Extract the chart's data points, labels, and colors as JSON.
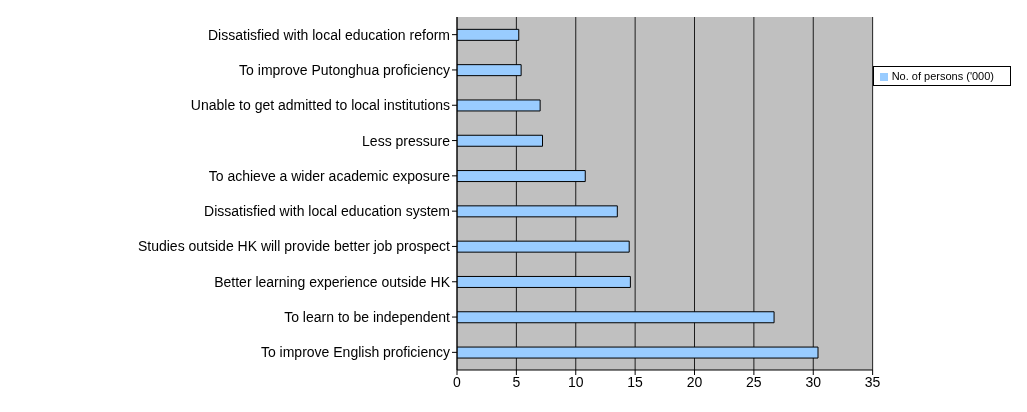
{
  "chart_data": {
    "type": "bar",
    "orientation": "horizontal",
    "categories": [
      "Dissatisfied with local education reform",
      "To improve Putonghua proficiency",
      "Unable to get admitted to local institutions",
      "Less pressure",
      "To achieve a wider academic exposure",
      "Dissatisfied with local education system",
      "Studies outside HK will provide better job prospect",
      "Better learning experience outside HK",
      "To learn to be independent",
      "To improve English proficiency"
    ],
    "series": [
      {
        "name": "No. of persons ('000)",
        "color": "#99ccff",
        "values": [
          5.2,
          5.4,
          7.0,
          7.2,
          10.8,
          13.5,
          14.5,
          14.6,
          26.7,
          30.4
        ]
      }
    ],
    "xlim": [
      0,
      35
    ],
    "xticks": [
      0,
      5,
      10,
      15,
      20,
      25,
      30,
      35
    ],
    "grid": "x",
    "legend": "top right"
  }
}
